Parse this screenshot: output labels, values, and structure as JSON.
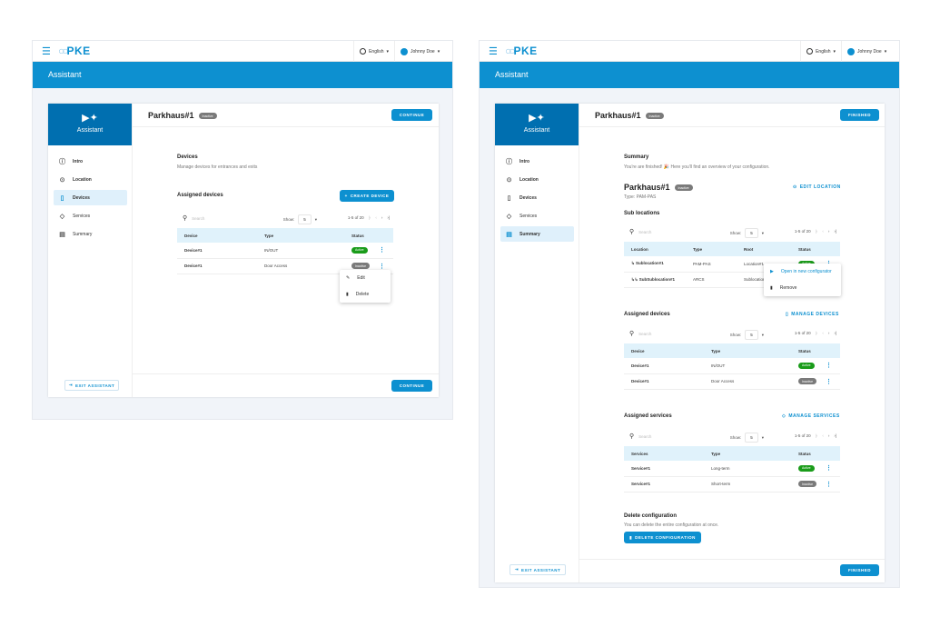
{
  "header": {
    "logo": "PKE",
    "language": "English",
    "user": "Johnny Doe",
    "user_initials": "JD",
    "banner": "Assistant"
  },
  "sidebar": {
    "title": "Assistant",
    "items": [
      {
        "label": "Intro",
        "icon": "info-icon"
      },
      {
        "label": "Location",
        "icon": "pin-icon"
      },
      {
        "label": "Devices",
        "icon": "device-icon"
      },
      {
        "label": "Services",
        "icon": "tag-icon"
      },
      {
        "label": "Summary",
        "icon": "document-icon"
      }
    ],
    "exit": "EXIT ASSISTANT"
  },
  "colors": {
    "primary": "#0d90d0",
    "sidebar_header": "#006fb0",
    "active": "#1a9c1a",
    "inactive": "#7a7a7a"
  },
  "left": {
    "location": "Parkhaus#1",
    "status": "Inactive",
    "continue": "CONTINUE",
    "section_title": "Devices",
    "section_desc": "Manage devices for entrances and exits",
    "assigned_title": "Assigned devices",
    "create_device": "CREATE DEVICE",
    "table": {
      "search_placeholder": "Search",
      "show_label": "Show:",
      "page_size": "5",
      "range": "1-5 of 20",
      "columns": [
        "Device",
        "Type",
        "Status"
      ],
      "rows": [
        [
          "Device#1",
          "IN/OUT",
          "Active"
        ],
        [
          "Device#1",
          "Door Access",
          "Inactive"
        ]
      ]
    },
    "menu": [
      "Edit",
      "Delete"
    ]
  },
  "right": {
    "location": "Parkhaus#1",
    "status": "Inactive",
    "finished": "FINISHED",
    "summary_title": "Summary",
    "summary_desc": "You're are finished! 🎉 Here you'll find an overview of your configuration.",
    "loc_name": "Parkhaus#1",
    "loc_type": "Type: PAM-PAS",
    "edit_location": "EDIT LOCATION",
    "sub_title": "Sub locations",
    "sub_table": {
      "search_placeholder": "Search",
      "show_label": "Show:",
      "page_size": "5",
      "range": "1-5 of 20",
      "columns": [
        "Location",
        "Type",
        "Root",
        "Status"
      ],
      "rows": [
        [
          "↳ Sublocation#1",
          "PAM-PAS",
          "Location#1",
          "Active"
        ],
        [
          "↳↳ SubSublocation#1",
          "ARCS",
          "Sublocation#1",
          "Active"
        ]
      ]
    },
    "sub_menu": [
      "Open in new configurator",
      "Remove"
    ],
    "devices_title": "Assigned devices",
    "manage_devices": "MANAGE DEVICES",
    "dev_table": {
      "search_placeholder": "Search",
      "show_label": "Show:",
      "page_size": "5",
      "range": "1-5 of 20",
      "columns": [
        "Device",
        "Type",
        "Status"
      ],
      "rows": [
        [
          "Device#1",
          "IN/OUT",
          "Active"
        ],
        [
          "Device#1",
          "Door Access",
          "Inactive"
        ]
      ]
    },
    "services_title": "Assigned services",
    "manage_services": "MANAGE SERVICES",
    "svc_table": {
      "search_placeholder": "Search",
      "show_label": "Show:",
      "page_size": "5",
      "range": "1-5 of 20",
      "columns": [
        "Services",
        "Type",
        "Status"
      ],
      "rows": [
        [
          "Service#1",
          "Long-term",
          "Active"
        ],
        [
          "Service#1",
          "Short-term",
          "Inactive"
        ]
      ]
    },
    "delete_title": "Delete configuration",
    "delete_desc": "You can delete the entire configuration at once.",
    "delete_button": "DELETE CONFIGURATION"
  }
}
